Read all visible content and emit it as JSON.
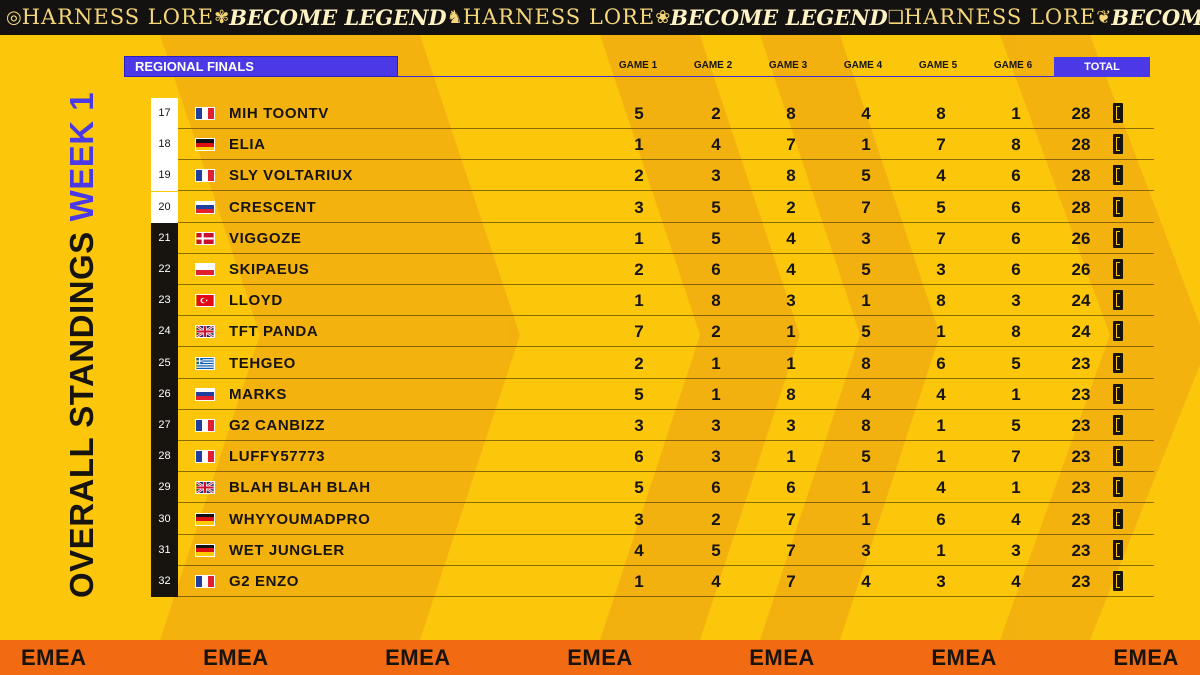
{
  "banner_top": [
    "HARNESS LORE",
    "BECOME LEGEND",
    "HARNESS LORE",
    "BECOME LEGEND",
    "HARNESS LORE",
    "BECOME LEGEND"
  ],
  "banner_bottom": [
    "EMEA",
    "EMEA",
    "EMEA",
    "EMEA",
    "EMEA",
    "EMEA",
    "EMEA"
  ],
  "title": {
    "main": "OVERALL STANDINGS",
    "week": "WEEK 1"
  },
  "header": {
    "section": "REGIONAL FINALS",
    "games": [
      "GAME 1",
      "GAME 2",
      "GAME 3",
      "GAME 4",
      "GAME 5",
      "GAME 6"
    ],
    "total": "TOTAL"
  },
  "colors": {
    "background": "#fcc70b",
    "accent": "#4b39e8",
    "bottom_banner": "#f26a12",
    "dark": "#141210"
  },
  "rows": [
    {
      "rank": "17",
      "flag": "france-flag",
      "name": "MIH TOONTV",
      "games": [
        "5",
        "2",
        "8",
        "4",
        "8",
        "1"
      ],
      "total": "28"
    },
    {
      "rank": "18",
      "flag": "germany-flag",
      "name": "ELIA",
      "games": [
        "1",
        "4",
        "7",
        "1",
        "7",
        "8"
      ],
      "total": "28"
    },
    {
      "rank": "19",
      "flag": "france-flag",
      "name": "SLY VOLTARIUX",
      "games": [
        "2",
        "3",
        "8",
        "5",
        "4",
        "6"
      ],
      "total": "28"
    },
    {
      "rank": "20",
      "flag": "russia-flag",
      "name": "CRESCENT",
      "games": [
        "3",
        "5",
        "2",
        "7",
        "5",
        "6"
      ],
      "total": "28"
    },
    {
      "rank": "21",
      "flag": "denmark-flag",
      "name": "VIGGOZE",
      "games": [
        "1",
        "5",
        "4",
        "3",
        "7",
        "6"
      ],
      "total": "26"
    },
    {
      "rank": "22",
      "flag": "czechia-flag",
      "name": "SKIPAEUS",
      "games": [
        "2",
        "6",
        "4",
        "5",
        "3",
        "6"
      ],
      "total": "26"
    },
    {
      "rank": "23",
      "flag": "turkey-flag",
      "name": "LLOYD",
      "games": [
        "1",
        "8",
        "3",
        "1",
        "8",
        "3"
      ],
      "total": "24"
    },
    {
      "rank": "24",
      "flag": "uk-flag",
      "name": "TFT PANDA",
      "games": [
        "7",
        "2",
        "1",
        "5",
        "1",
        "8"
      ],
      "total": "24"
    },
    {
      "rank": "25",
      "flag": "greece-flag",
      "name": "TEHGEO",
      "games": [
        "2",
        "1",
        "1",
        "8",
        "6",
        "5"
      ],
      "total": "23"
    },
    {
      "rank": "26",
      "flag": "russia-flag",
      "name": "MARKS",
      "games": [
        "5",
        "1",
        "8",
        "4",
        "4",
        "1"
      ],
      "total": "23"
    },
    {
      "rank": "27",
      "flag": "france-flag",
      "name": "G2 CANBIZZ",
      "games": [
        "3",
        "3",
        "3",
        "8",
        "1",
        "5"
      ],
      "total": "23"
    },
    {
      "rank": "28",
      "flag": "france-flag",
      "name": "LUFFY57773",
      "games": [
        "6",
        "3",
        "1",
        "5",
        "1",
        "7"
      ],
      "total": "23"
    },
    {
      "rank": "29",
      "flag": "uk-flag",
      "name": "BLAH BLAH BLAH",
      "games": [
        "5",
        "6",
        "6",
        "1",
        "4",
        "1"
      ],
      "total": "23"
    },
    {
      "rank": "30",
      "flag": "germany-flag",
      "name": "WHYYOUMADPRO",
      "games": [
        "3",
        "2",
        "7",
        "1",
        "6",
        "4"
      ],
      "total": "23"
    },
    {
      "rank": "31",
      "flag": "germany-flag",
      "name": "WET JUNGLER",
      "games": [
        "4",
        "5",
        "7",
        "3",
        "1",
        "3"
      ],
      "total": "23"
    },
    {
      "rank": "32",
      "flag": "france-flag",
      "name": "G2 ENZO",
      "games": [
        "1",
        "4",
        "7",
        "4",
        "3",
        "4"
      ],
      "total": "23"
    }
  ]
}
